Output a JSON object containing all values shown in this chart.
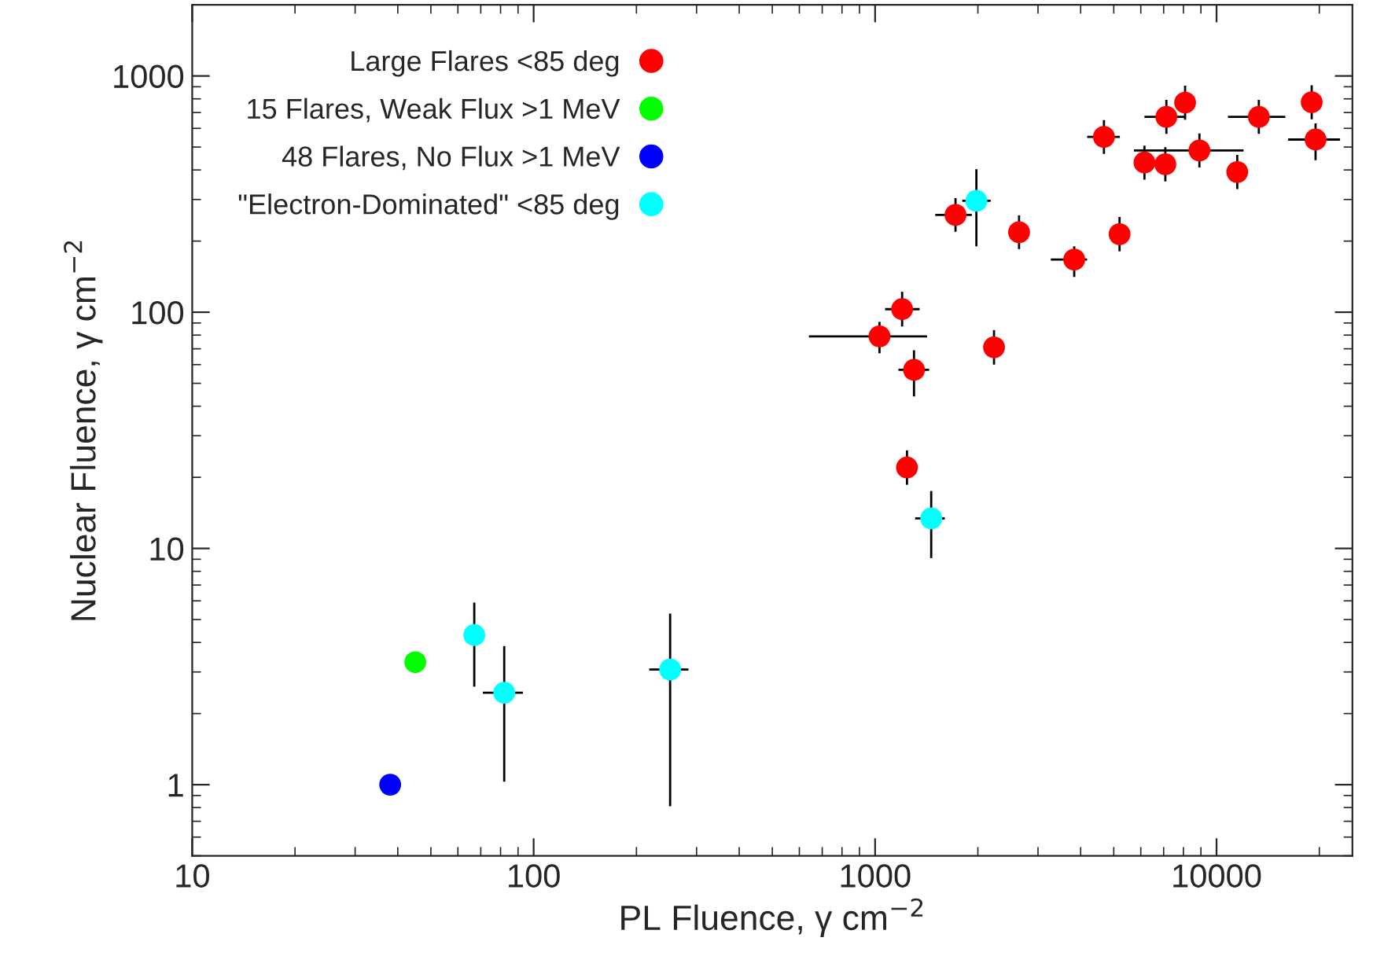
{
  "chart_data": {
    "type": "scatter",
    "xlabel": "PL Fluence, γ cm$^{−2}$",
    "ylabel": "Nuclear Fluence, γ cm$^{−2}$",
    "log": "xy",
    "xlim": [
      10,
      25000
    ],
    "ylim": [
      0.5,
      2000
    ],
    "xticks": [
      10,
      100,
      1000,
      10000
    ],
    "yticks": [
      1,
      10,
      100,
      1000
    ],
    "grid": false,
    "legend": "top left",
    "marker": "circle",
    "series": [
      {
        "name": "Large Flares <85 deg",
        "color": "#ff0000",
        "x": [
          4680,
          7130,
          8090,
          13300,
          19000,
          19500,
          8910,
          6150,
          7080,
          11500,
          1720,
          2640,
          3830,
          5200,
          1200,
          1030,
          1300,
          2230,
          1240
        ],
        "values": [
          552,
          671,
          771,
          671,
          774,
          538,
          484,
          430,
          423,
          392,
          258,
          218,
          167,
          214,
          103,
          79,
          57,
          71,
          22
        ],
        "xerrors": [
          [
            4180,
            5210
          ],
          [
            6150,
            8090
          ],
          null,
          [
            10800,
            15900
          ],
          null,
          [
            16200,
            23000
          ],
          [
            5730,
            12000
          ],
          null,
          null,
          null,
          [
            1500,
            1920
          ],
          null,
          [
            3270,
            4180
          ],
          null,
          [
            1070,
            1350
          ],
          [
            640,
            1420
          ],
          [
            1170,
            1440
          ],
          null,
          null
        ],
        "errors": [
          [
            468,
            651
          ],
          [
            569,
            792
          ],
          [
            653,
            910
          ],
          [
            569,
            792
          ],
          [
            656,
            913
          ],
          [
            440,
            630
          ],
          [
            410,
            571
          ],
          [
            364,
            507
          ],
          [
            358,
            499
          ],
          [
            332,
            463
          ],
          [
            219,
            304
          ],
          [
            185,
            257
          ],
          [
            141,
            190
          ],
          [
            181,
            253
          ],
          [
            87,
            122
          ],
          [
            67,
            91
          ],
          [
            44,
            69
          ],
          [
            60,
            84
          ],
          [
            18.6,
            26
          ]
        ]
      },
      {
        "name": "15 Flares, Weak Flux >1 MeV",
        "color": "#00ff00",
        "x": [
          45
        ],
        "values": [
          3.3
        ]
      },
      {
        "name": "48 Flares, No Flux >1 MeV",
        "color": "#0000ff",
        "x": [
          38
        ],
        "values": [
          1.0
        ]
      },
      {
        "name": "\"Electron-Dominated\" <85 deg",
        "color": "#00ffff",
        "x": [
          1980,
          1460,
          67,
          82,
          251
        ],
        "values": [
          296,
          13.4,
          4.3,
          2.45,
          3.07
        ],
        "xerrors": [
          [
            1800,
            2180
          ],
          [
            1310,
            1600
          ],
          null,
          [
            71,
            93
          ],
          [
            218,
            284
          ]
        ],
        "errors": [
          [
            190,
            403
          ],
          [
            9.1,
            17.5
          ],
          [
            2.6,
            5.9
          ],
          [
            1.03,
            3.86
          ],
          [
            0.81,
            5.3
          ]
        ]
      }
    ]
  }
}
